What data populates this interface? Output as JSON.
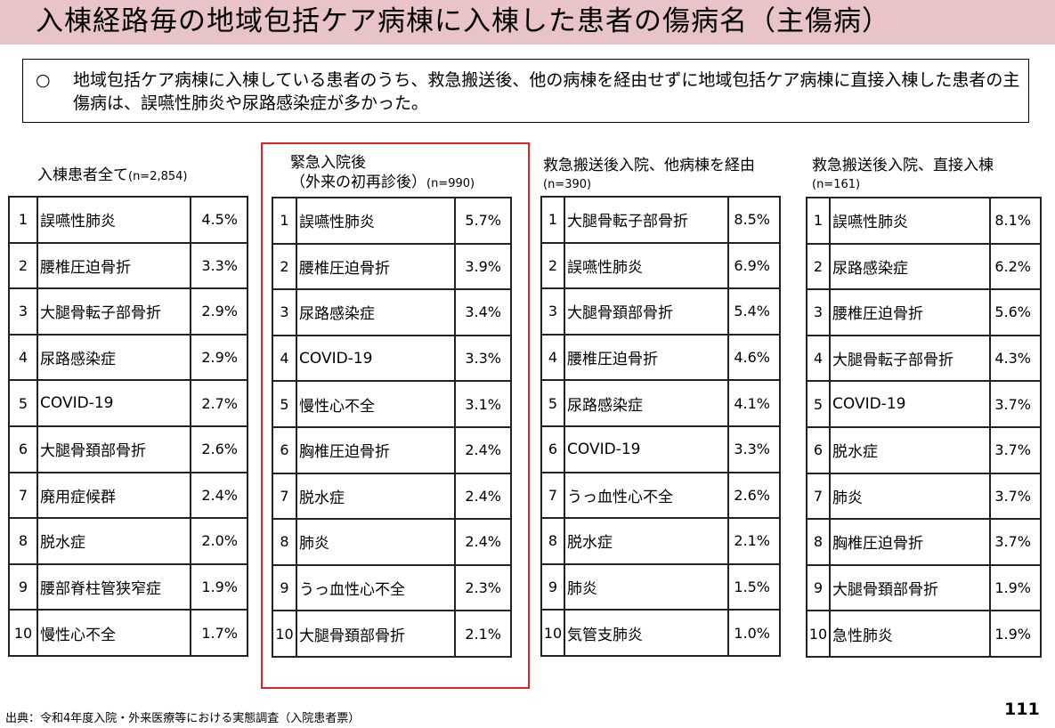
{
  "title": "入棟経路毎の地域包括ケア病棟に入棟した患者の傷病名（主傷病）",
  "summary": {
    "bullet": "○",
    "text": "地域包括ケア病棟に入棟している患者のうち、救急搬送後、他の病棟を経由せずに地域包括ケア病棟に直接入棟した患者の主傷病は、誤嚥性肺炎や尿路感染症が多かった。"
  },
  "columns": [
    {
      "header": "入棟患者全て",
      "n": "(n=2,854)",
      "rows": [
        {
          "rank": "1",
          "name": "誤嚥性肺炎",
          "pct": "4.5%"
        },
        {
          "rank": "2",
          "name": "腰椎圧迫骨折",
          "pct": "3.3%"
        },
        {
          "rank": "3",
          "name": "大腿骨転子部骨折",
          "pct": "2.9%"
        },
        {
          "rank": "4",
          "name": "尿路感染症",
          "pct": "2.9%"
        },
        {
          "rank": "5",
          "name": "COVID-19",
          "pct": "2.7%"
        },
        {
          "rank": "6",
          "name": "大腿骨頚部骨折",
          "pct": "2.6%"
        },
        {
          "rank": "7",
          "name": "廃用症候群",
          "pct": "2.4%"
        },
        {
          "rank": "8",
          "name": "脱水症",
          "pct": "2.0%"
        },
        {
          "rank": "9",
          "name": "腰部脊柱管狭窄症",
          "pct": "1.9%"
        },
        {
          "rank": "10",
          "name": "慢性心不全",
          "pct": "1.7%"
        }
      ]
    },
    {
      "header": "緊急入院後",
      "header2": "（外来の初再診後）",
      "n": "(n=990)",
      "rows": [
        {
          "rank": "1",
          "name": "誤嚥性肺炎",
          "pct": "5.7%"
        },
        {
          "rank": "2",
          "name": "腰椎圧迫骨折",
          "pct": "3.9%"
        },
        {
          "rank": "3",
          "name": "尿路感染症",
          "pct": "3.4%"
        },
        {
          "rank": "4",
          "name": "COVID-19",
          "pct": "3.3%"
        },
        {
          "rank": "5",
          "name": "慢性心不全",
          "pct": "3.1%"
        },
        {
          "rank": "6",
          "name": "胸椎圧迫骨折",
          "pct": "2.4%"
        },
        {
          "rank": "7",
          "name": "脱水症",
          "pct": "2.4%"
        },
        {
          "rank": "8",
          "name": "肺炎",
          "pct": "2.4%"
        },
        {
          "rank": "9",
          "name": "うっ血性心不全",
          "pct": "2.3%"
        },
        {
          "rank": "10",
          "name": "大腿骨頚部骨折",
          "pct": "2.1%"
        }
      ]
    },
    {
      "header": "救急搬送後入院、他病棟を経由",
      "n": "(n=390)",
      "rows": [
        {
          "rank": "1",
          "name": "大腿骨転子部骨折",
          "pct": "8.5%"
        },
        {
          "rank": "2",
          "name": "誤嚥性肺炎",
          "pct": "6.9%"
        },
        {
          "rank": "3",
          "name": "大腿骨頚部骨折",
          "pct": "5.4%"
        },
        {
          "rank": "4",
          "name": "腰椎圧迫骨折",
          "pct": "4.6%"
        },
        {
          "rank": "5",
          "name": "尿路感染症",
          "pct": "4.1%"
        },
        {
          "rank": "6",
          "name": "COVID-19",
          "pct": "3.3%"
        },
        {
          "rank": "7",
          "name": "うっ血性心不全",
          "pct": "2.6%"
        },
        {
          "rank": "8",
          "name": "脱水症",
          "pct": "2.1%"
        },
        {
          "rank": "9",
          "name": "肺炎",
          "pct": "1.5%"
        },
        {
          "rank": "10",
          "name": "気管支肺炎",
          "pct": "1.0%"
        }
      ]
    },
    {
      "header": "救急搬送後入院、直接入棟",
      "n": "(n=161)",
      "rows": [
        {
          "rank": "1",
          "name": "誤嚥性肺炎",
          "pct": "8.1%"
        },
        {
          "rank": "2",
          "name": "尿路感染症",
          "pct": "6.2%"
        },
        {
          "rank": "3",
          "name": "腰椎圧迫骨折",
          "pct": "5.6%"
        },
        {
          "rank": "4",
          "name": "大腿骨転子部骨折",
          "pct": "4.3%"
        },
        {
          "rank": "5",
          "name": "COVID-19",
          "pct": "3.7%"
        },
        {
          "rank": "6",
          "name": "脱水症",
          "pct": "3.7%"
        },
        {
          "rank": "7",
          "name": "肺炎",
          "pct": "3.7%"
        },
        {
          "rank": "8",
          "name": "胸椎圧迫骨折",
          "pct": "3.7%"
        },
        {
          "rank": "9",
          "name": "大腿骨頚部骨折",
          "pct": "1.9%"
        },
        {
          "rank": "10",
          "name": "急性肺炎",
          "pct": "1.9%"
        }
      ]
    }
  ],
  "source": "出典：令和4年度入院・外来医療等における実態調査（入院患者票）",
  "page_number": "111",
  "colors": {
    "title_background": "#e8c4c8",
    "highlight_border": "#d42828"
  }
}
